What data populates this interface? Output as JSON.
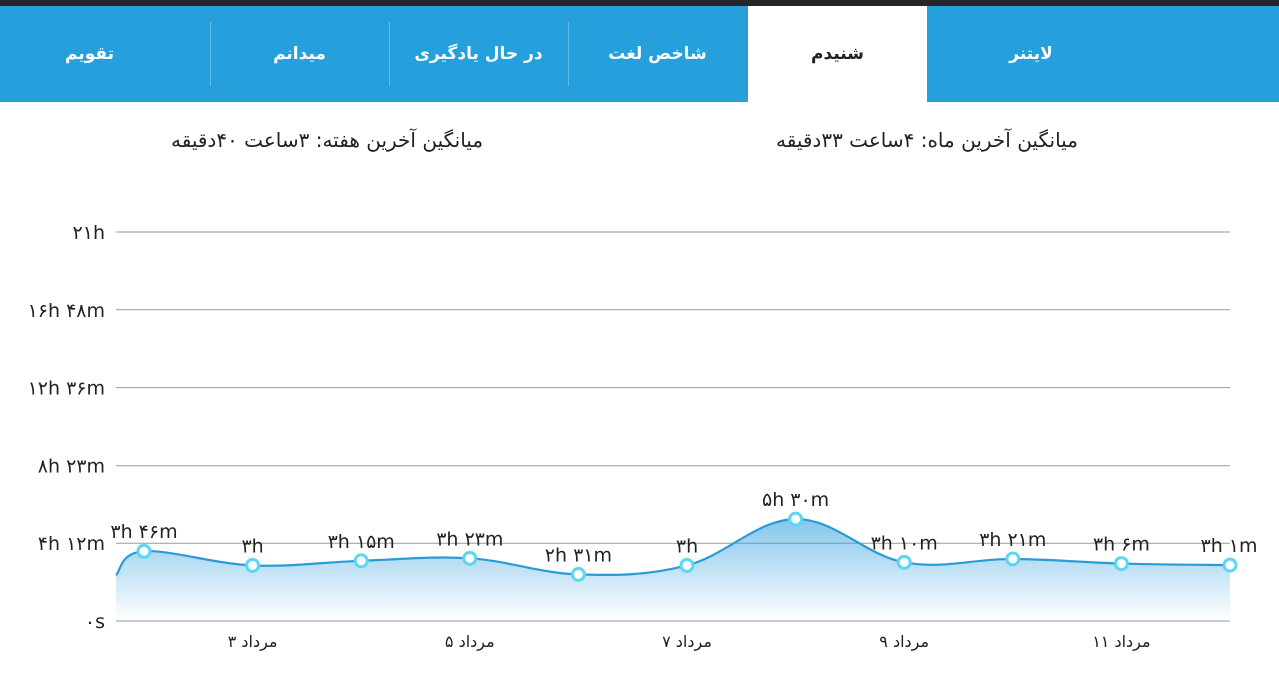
{
  "tabs": [
    {
      "label": "لایتنر",
      "active": false
    },
    {
      "label": "شنیدم",
      "active": true
    },
    {
      "label": "شاخص لغت",
      "active": false
    },
    {
      "label": "در حال یادگیری",
      "active": false
    },
    {
      "label": "میدانم",
      "active": false
    },
    {
      "label": "تقویم",
      "active": false
    }
  ],
  "stats": {
    "last_month": "میانگین آخرین ماه: ۴ساعت  ۳۳دقیقه",
    "last_week": "میانگین آخرین هفته: ۳ساعت  ۴۰دقیقه"
  },
  "colors": {
    "accent": "#26a0dc",
    "line": "#2b9bd8",
    "marker": "#5cd6f2",
    "grid": "#9a9a9a"
  },
  "chart_data": {
    "type": "area",
    "y_unit": "minutes",
    "ylim": [
      0,
      1260
    ],
    "y_ticks": [
      {
        "value": 0,
        "label": "۰s"
      },
      {
        "value": 252,
        "label": "۴h ۱۲m"
      },
      {
        "value": 503,
        "label": "۸h ۲۳m"
      },
      {
        "value": 756,
        "label": "۱۲h ۳۶m"
      },
      {
        "value": 1008,
        "label": "۱۶h ۴۸m"
      },
      {
        "value": 1260,
        "label": "۲۱h"
      }
    ],
    "x_tick_labels": [
      {
        "index": 1,
        "label": "۳ مرداد"
      },
      {
        "index": 3,
        "label": "۵ مرداد"
      },
      {
        "index": 5,
        "label": "۷ مرداد"
      },
      {
        "index": 7,
        "label": "۹ مرداد"
      },
      {
        "index": 9,
        "label": "۱۱ مرداد"
      }
    ],
    "grid": true,
    "points": [
      {
        "value": 226,
        "label": "۳h ۴۶m"
      },
      {
        "value": 180,
        "label": "۳h"
      },
      {
        "value": 195,
        "label": "۳h ۱۵m"
      },
      {
        "value": 203,
        "label": "۳h ۲۳m"
      },
      {
        "value": 151,
        "label": "۲h ۳۱m"
      },
      {
        "value": 180,
        "label": "۳h"
      },
      {
        "value": 330,
        "label": "۵h ۳۰m"
      },
      {
        "value": 190,
        "label": "۳h ۱۰m"
      },
      {
        "value": 201,
        "label": "۳h ۲۱m"
      },
      {
        "value": 186,
        "label": "۳h ۶m"
      },
      {
        "value": 181,
        "label": "۳h ۱m"
      }
    ]
  }
}
